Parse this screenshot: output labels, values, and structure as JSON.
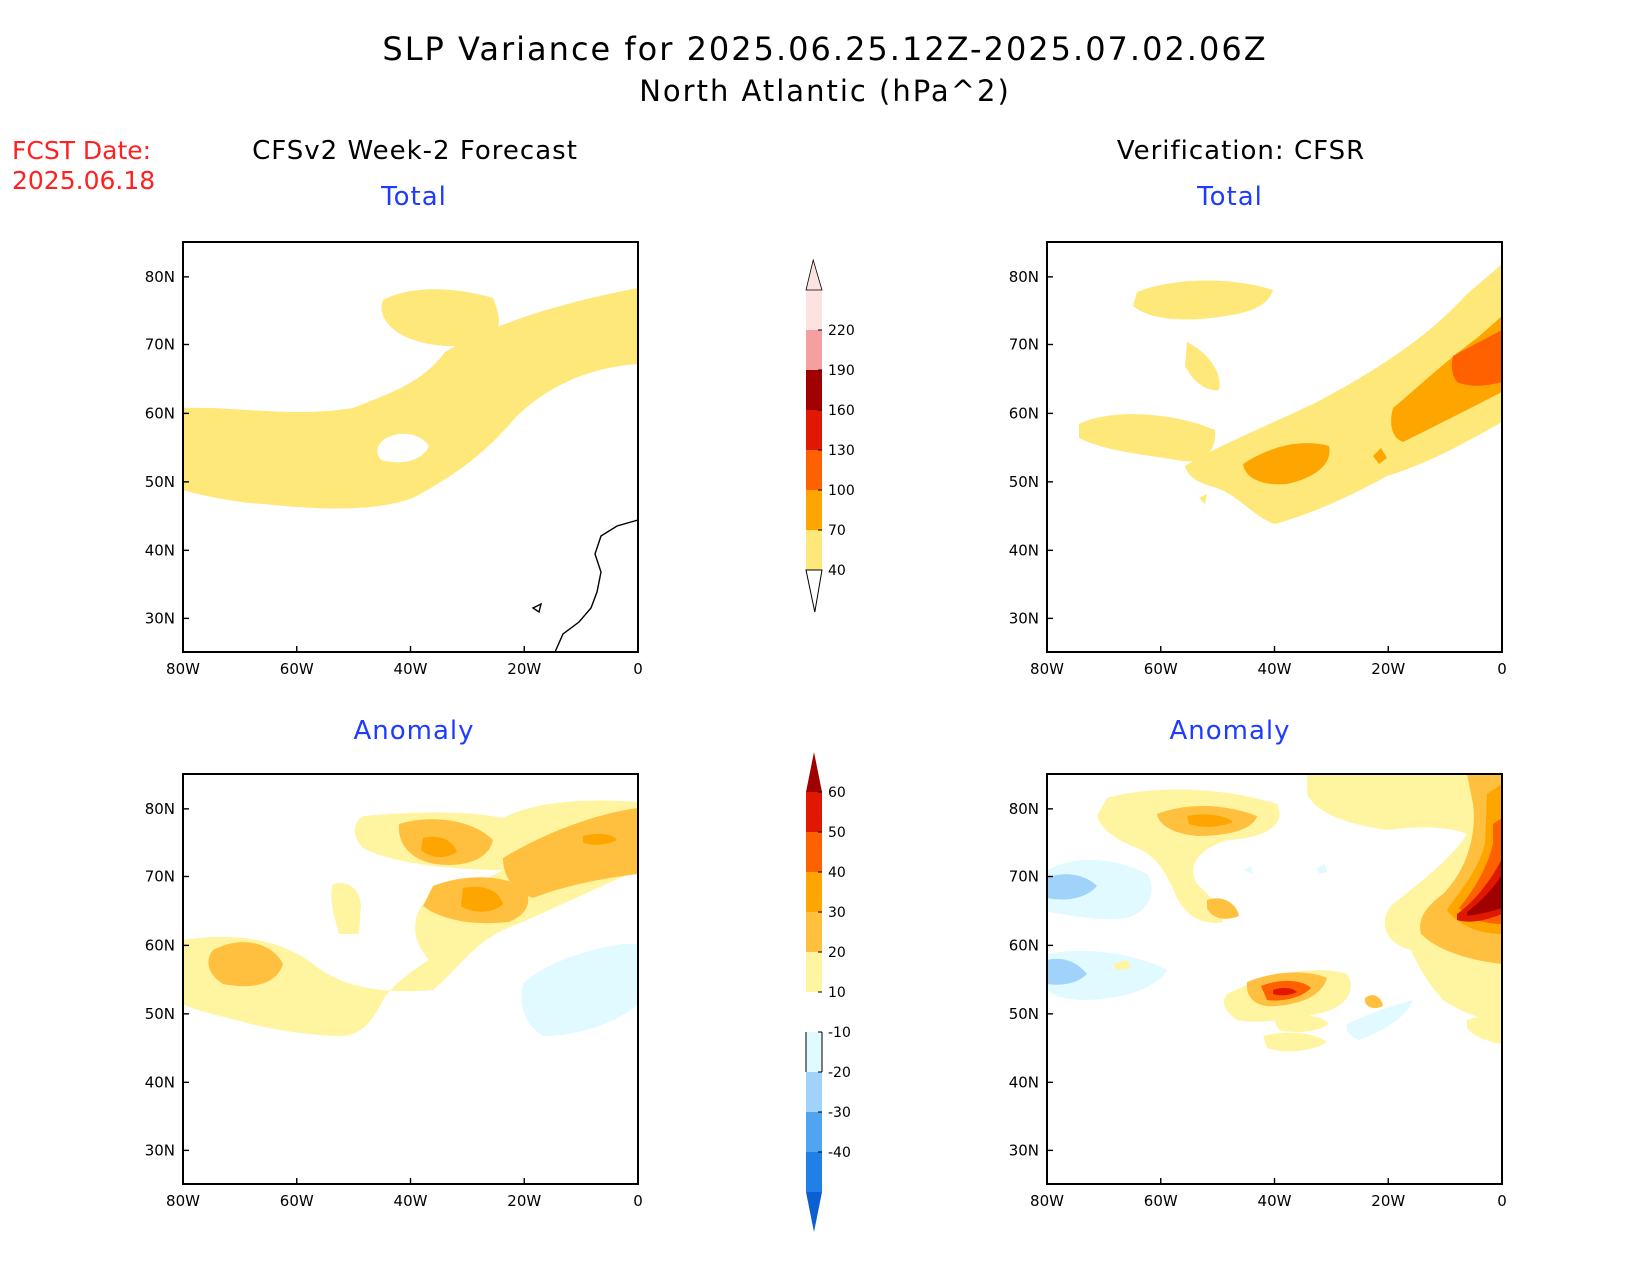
{
  "header": {
    "title_line1": "SLP Variance for 2025.06.25.12Z-2025.07.02.06Z",
    "title_line2": "North Atlantic (hPa^2)",
    "fcst_label": "FCST Date:",
    "fcst_date": "2025.06.18"
  },
  "columns": {
    "left": "CFSv2 Week-2 Forecast",
    "right": "Verification: CFSR"
  },
  "panels": {
    "forecast_total": "Total",
    "forecast_anomaly": "Anomaly",
    "verification_total": "Total",
    "verification_anomaly": "Anomaly"
  },
  "map_axes": {
    "lon_labels": [
      "80W",
      "60W",
      "40W",
      "20W",
      "0"
    ],
    "lat_labels": [
      "80N",
      "70N",
      "60N",
      "50N",
      "40N",
      "30N"
    ]
  },
  "total_colorbar": {
    "levels": [
      "40",
      "70",
      "100",
      "130",
      "160",
      "190",
      "220"
    ],
    "colors": [
      "#ffe87a",
      "#ffa500",
      "#ff6000",
      "#e01800",
      "#a00000",
      "#f4a0a0",
      "#fde2e2"
    ]
  },
  "anomaly_colorbar": {
    "levels": [
      "60",
      "50",
      "40",
      "30",
      "20",
      "10",
      "-10",
      "-20",
      "-30",
      "-40"
    ],
    "colors": [
      "#a00000",
      "#e01800",
      "#ff6000",
      "#ffa500",
      "#ffc040",
      "#fff5a0",
      "#ffffff",
      "#e0faff",
      "#a0d2fa",
      "#50a5f0",
      "#2080e8",
      "#0a60d0"
    ]
  }
}
